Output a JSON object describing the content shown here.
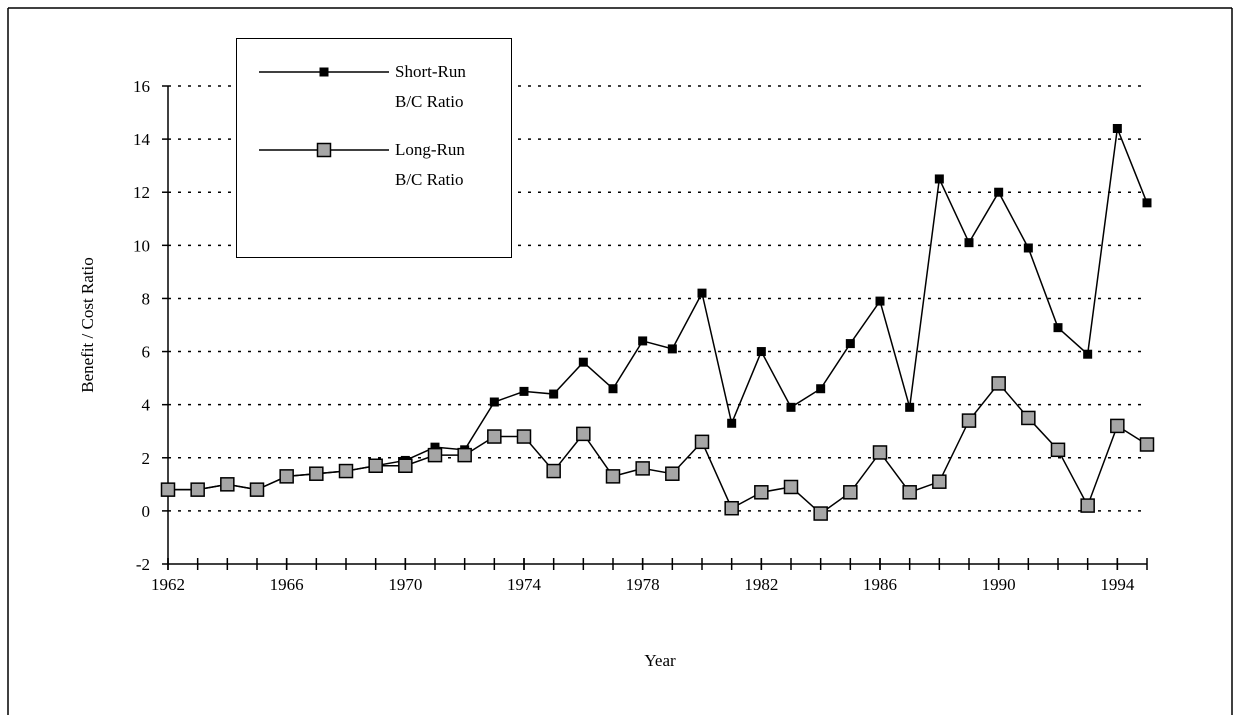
{
  "chart_data": {
    "type": "line",
    "x_label": "Year",
    "y_label": "Benefit / Cost Ratio",
    "x": [
      1962,
      1963,
      1964,
      1965,
      1966,
      1967,
      1968,
      1969,
      1970,
      1971,
      1972,
      1973,
      1974,
      1975,
      1976,
      1977,
      1978,
      1979,
      1980,
      1981,
      1982,
      1983,
      1984,
      1985,
      1986,
      1987,
      1988,
      1989,
      1990,
      1991,
      1992,
      1993,
      1994,
      1995
    ],
    "series": [
      {
        "name": "Short-Run B/C Ratio",
        "color": "#000000",
        "marker_fill": "#000000",
        "values": [
          0.8,
          0.8,
          1.0,
          0.8,
          1.3,
          1.4,
          1.5,
          1.7,
          1.9,
          2.4,
          2.3,
          4.1,
          4.5,
          4.4,
          5.6,
          4.6,
          6.4,
          6.1,
          8.2,
          3.3,
          6.0,
          3.9,
          4.6,
          6.3,
          7.9,
          3.9,
          12.5,
          10.1,
          12.0,
          9.9,
          6.9,
          5.9,
          14.4,
          11.6
        ]
      },
      {
        "name": "Long-Run B/C Ratio",
        "color": "#000000",
        "marker_fill": "#a6a6a6",
        "values": [
          0.8,
          0.8,
          1.0,
          0.8,
          1.3,
          1.4,
          1.5,
          1.7,
          1.7,
          2.1,
          2.1,
          2.8,
          2.8,
          1.5,
          2.9,
          1.3,
          1.6,
          1.4,
          2.6,
          0.1,
          0.7,
          0.9,
          -0.1,
          0.7,
          2.2,
          0.7,
          1.1,
          3.4,
          4.8,
          3.5,
          2.3,
          0.2,
          3.2,
          2.5
        ]
      }
    ],
    "xlim": [
      1962,
      1995
    ],
    "xticks": [
      1962,
      1966,
      1970,
      1974,
      1978,
      1982,
      1986,
      1990,
      1994
    ],
    "ylim": [
      -2,
      16
    ],
    "yticks": [
      -2,
      0,
      2,
      4,
      6,
      8,
      10,
      12,
      14,
      16
    ],
    "grid": true,
    "legend": "upper left"
  }
}
